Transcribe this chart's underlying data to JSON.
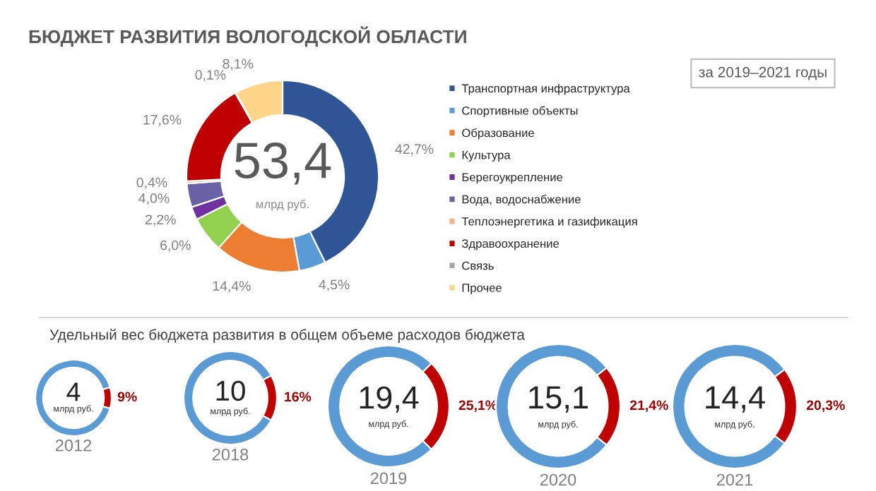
{
  "chart_data": [
    {
      "type": "donut",
      "title": "БЮДЖЕТ РАЗВИТИЯ ВОЛОГОДСКОЙ ОБЛАСТИ",
      "categories": [
        "Транспортная инфраструктура",
        "Спортивные объекты",
        "Образование",
        "Культура",
        "Берегоукрепление",
        "Вода, водоснабжение",
        "Теплоэнергетика и газификация",
        "Здравоохранение",
        "Связь",
        "Прочее"
      ],
      "values": [
        42.7,
        4.5,
        14.4,
        6.0,
        2.2,
        4.0,
        0.4,
        17.6,
        0.1,
        8.1
      ],
      "value_labels": [
        "42,7%",
        "4,5%",
        "14,4%",
        "6,0%",
        "2,2%",
        "4,0%",
        "0,4%",
        "17,6%",
        "0,1%",
        "8,1%"
      ],
      "colors": [
        "#2f5597",
        "#5b9bd5",
        "#ed7d31",
        "#92d050",
        "#7030a0",
        "#6a62a6",
        "#f4b183",
        "#c00000",
        "#a5a5a5",
        "#ffd58a"
      ],
      "annotations": [
        "53,4",
        "млрд руб.",
        "за 2019–2021 годы"
      ],
      "legend": "right"
    },
    {
      "type": "donut",
      "title": "2012",
      "subtitle": "Удельный вес бюджета развития в общем объеме расходов бюджета",
      "categories": [
        null,
        null
      ],
      "values": [
        9,
        91
      ],
      "value_labels": [
        "9%",
        null
      ],
      "colors": [
        "#c00000",
        "#5b9bd5"
      ],
      "annotations": [
        "4",
        "млрд руб."
      ]
    },
    {
      "type": "donut",
      "title": "2018",
      "categories": [
        null,
        null
      ],
      "values": [
        16,
        84
      ],
      "value_labels": [
        "16%",
        null
      ],
      "colors": [
        "#c00000",
        "#5b9bd5"
      ],
      "annotations": [
        "10",
        "млрд руб."
      ]
    },
    {
      "type": "donut",
      "title": "2019",
      "categories": [
        null,
        null
      ],
      "values": [
        25.1,
        74.9
      ],
      "value_labels": [
        "25,1%",
        null
      ],
      "colors": [
        "#c00000",
        "#5b9bd5"
      ],
      "annotations": [
        "19,4",
        "млрд руб."
      ]
    },
    {
      "type": "donut",
      "title": "2020",
      "categories": [
        null,
        null
      ],
      "values": [
        21.4,
        78.6
      ],
      "value_labels": [
        "21,4%",
        null
      ],
      "colors": [
        "#c00000",
        "#5b9bd5"
      ],
      "annotations": [
        "15,1",
        "млрд руб."
      ]
    },
    {
      "type": "donut",
      "title": "2021",
      "categories": [
        null,
        null
      ],
      "values": [
        20.3,
        79.7
      ],
      "value_labels": [
        "20,3%",
        null
      ],
      "colors": [
        "#c00000",
        "#5b9bd5"
      ],
      "annotations": [
        "14,4",
        "млрд руб."
      ]
    }
  ]
}
